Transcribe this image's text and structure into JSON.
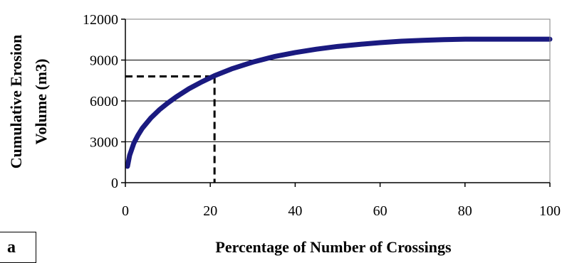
{
  "chart_data": {
    "type": "line",
    "xlabel": "Percentage of Number of Crossings",
    "ylabel": [
      "Cumulative Erosion",
      "Volume (m3)"
    ],
    "xlim": [
      0,
      100
    ],
    "ylim": [
      0,
      12000
    ],
    "x_ticks": [
      0,
      20,
      40,
      60,
      80,
      100
    ],
    "y_ticks": [
      0,
      3000,
      6000,
      9000,
      12000
    ],
    "grid": "horizontal",
    "series_color": "#1a1a80",
    "series": [
      {
        "x": [
          0.5,
          1,
          2,
          3,
          4,
          6,
          8,
          10,
          12,
          15,
          18,
          21,
          25,
          30,
          35,
          40,
          45,
          50,
          55,
          60,
          65,
          70,
          75,
          80,
          85,
          90,
          95,
          100
        ],
        "y": [
          1200,
          2000,
          2900,
          3500,
          4000,
          4750,
          5350,
          5850,
          6300,
          6900,
          7400,
          7850,
          8350,
          8850,
          9250,
          9550,
          9800,
          10000,
          10150,
          10280,
          10380,
          10450,
          10500,
          10530,
          10530,
          10530,
          10530,
          10530
        ]
      }
    ],
    "reference": {
      "x": 21,
      "y": 7800
    }
  },
  "panel_label": "a"
}
